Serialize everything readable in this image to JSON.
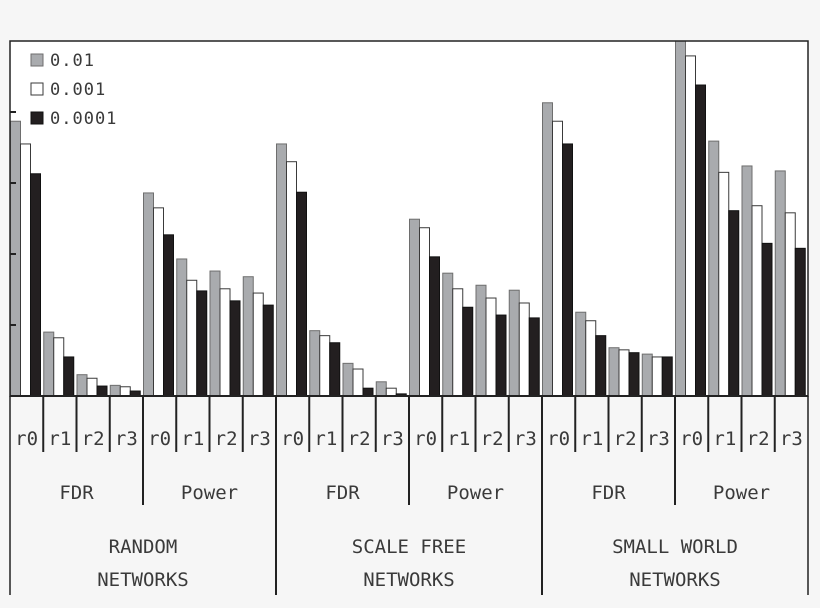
{
  "chart_data": {
    "type": "bar",
    "title": "",
    "xlabel": "",
    "ylabel": "",
    "ylim": [
      0,
      5
    ],
    "yticks": [
      1,
      2,
      3,
      4
    ],
    "grid": false,
    "legend_position": "top-left",
    "colors": {
      "0.01": "#a9abae",
      "0.001": "#ffffff",
      "0.0001": "#231f20"
    },
    "categories": [
      "r0",
      "r1",
      "r2",
      "r3",
      "r0",
      "r1",
      "r2",
      "r3",
      "r0",
      "r1",
      "r2",
      "r3",
      "r0",
      "r1",
      "r2",
      "r3",
      "r0",
      "r1",
      "r2",
      "r3",
      "r0",
      "r1",
      "r2",
      "r3"
    ],
    "measure_groups": [
      "FDR",
      "Power",
      "FDR",
      "Power",
      "FDR",
      "Power"
    ],
    "network_groups": [
      {
        "line1": "RANDOM",
        "line2": "NETWORKS"
      },
      {
        "line1": "SCALE FREE",
        "line2": "NETWORKS"
      },
      {
        "line1": "SMALL WORLD",
        "line2": "NETWORKS"
      }
    ],
    "series": [
      {
        "name": "0.01",
        "values": [
          3.87,
          0.9,
          0.3,
          0.15,
          2.86,
          1.93,
          1.76,
          1.68,
          3.55,
          0.92,
          0.46,
          0.2,
          2.49,
          1.73,
          1.56,
          1.49,
          4.13,
          1.18,
          0.68,
          0.59,
          5.0,
          3.59,
          3.24,
          3.17
        ]
      },
      {
        "name": "0.001",
        "values": [
          3.55,
          0.82,
          0.25,
          0.13,
          2.65,
          1.63,
          1.51,
          1.45,
          3.3,
          0.85,
          0.38,
          0.11,
          2.37,
          1.51,
          1.38,
          1.31,
          3.87,
          1.06,
          0.65,
          0.55,
          4.79,
          3.15,
          2.68,
          2.58
        ]
      },
      {
        "name": "0.0001",
        "values": [
          3.13,
          0.55,
          0.14,
          0.07,
          2.27,
          1.48,
          1.34,
          1.28,
          2.87,
          0.75,
          0.11,
          0.03,
          1.96,
          1.25,
          1.14,
          1.1,
          3.55,
          0.85,
          0.61,
          0.55,
          4.38,
          2.61,
          2.15,
          2.08
        ]
      }
    ]
  }
}
